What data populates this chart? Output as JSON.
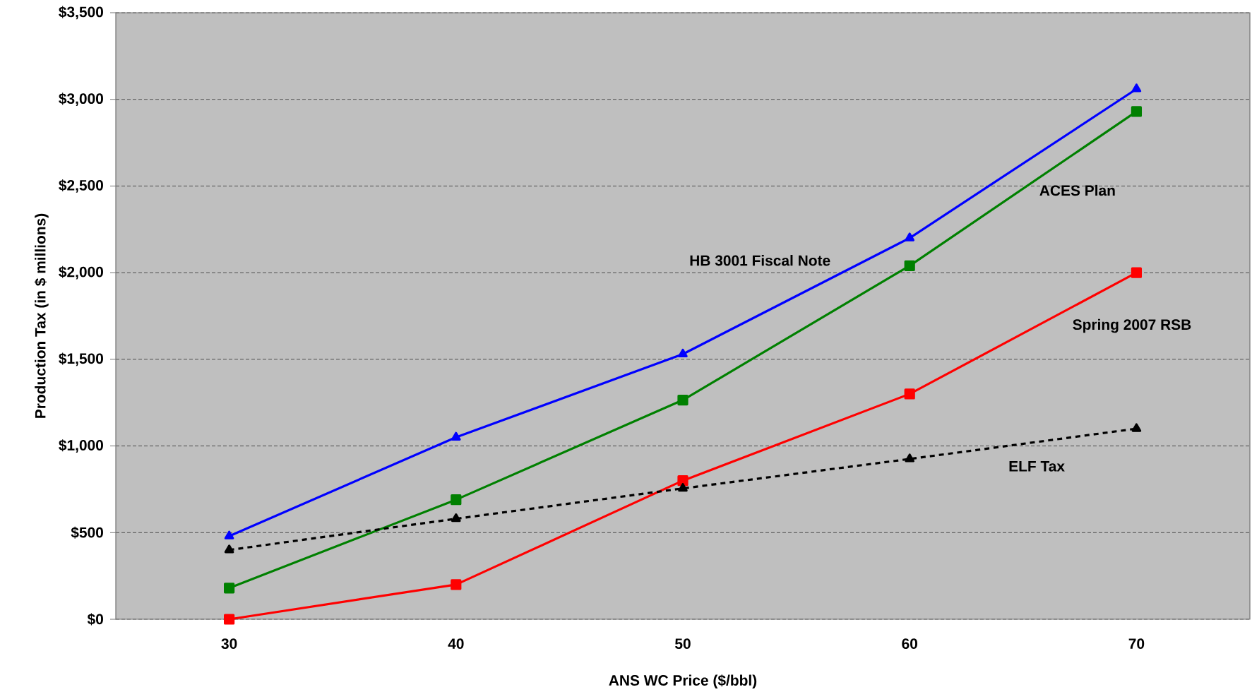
{
  "chart_data": {
    "type": "line",
    "xlabel": "ANS WC Price ($/bbl)",
    "ylabel": "Production Tax (in $ millions)",
    "categories": [
      "30",
      "40",
      "50",
      "60",
      "70"
    ],
    "series": [
      {
        "name": "HB 3001 Fiscal Note",
        "color": "#0000ff",
        "marker": "triangle",
        "line_style": "solid",
        "values": [
          480,
          1050,
          1530,
          2200,
          3060
        ]
      },
      {
        "name": "ACES Plan",
        "color": "#008000",
        "marker": "square",
        "line_style": "solid",
        "values": [
          180,
          690,
          1265,
          2040,
          2930
        ]
      },
      {
        "name": "Spring 2007 RSB",
        "color": "#ff0000",
        "marker": "square",
        "line_style": "solid",
        "values": [
          0,
          200,
          800,
          1300,
          2000
        ]
      },
      {
        "name": "ELF Tax",
        "color": "#000000",
        "marker": "triangle",
        "line_style": "dashed",
        "values": [
          400,
          580,
          755,
          925,
          1100
        ]
      }
    ],
    "ylim": [
      0,
      3500
    ],
    "yticks": [
      {
        "value": 0,
        "label": "$0"
      },
      {
        "value": 500,
        "label": "$500"
      },
      {
        "value": 1000,
        "label": "$1,000"
      },
      {
        "value": 1500,
        "label": "$1,500"
      },
      {
        "value": 2000,
        "label": "$2,000"
      },
      {
        "value": 2500,
        "label": "$2,500"
      },
      {
        "value": 3000,
        "label": "$3,000"
      },
      {
        "value": 3500,
        "label": "$3,500"
      }
    ],
    "grid": "y"
  }
}
